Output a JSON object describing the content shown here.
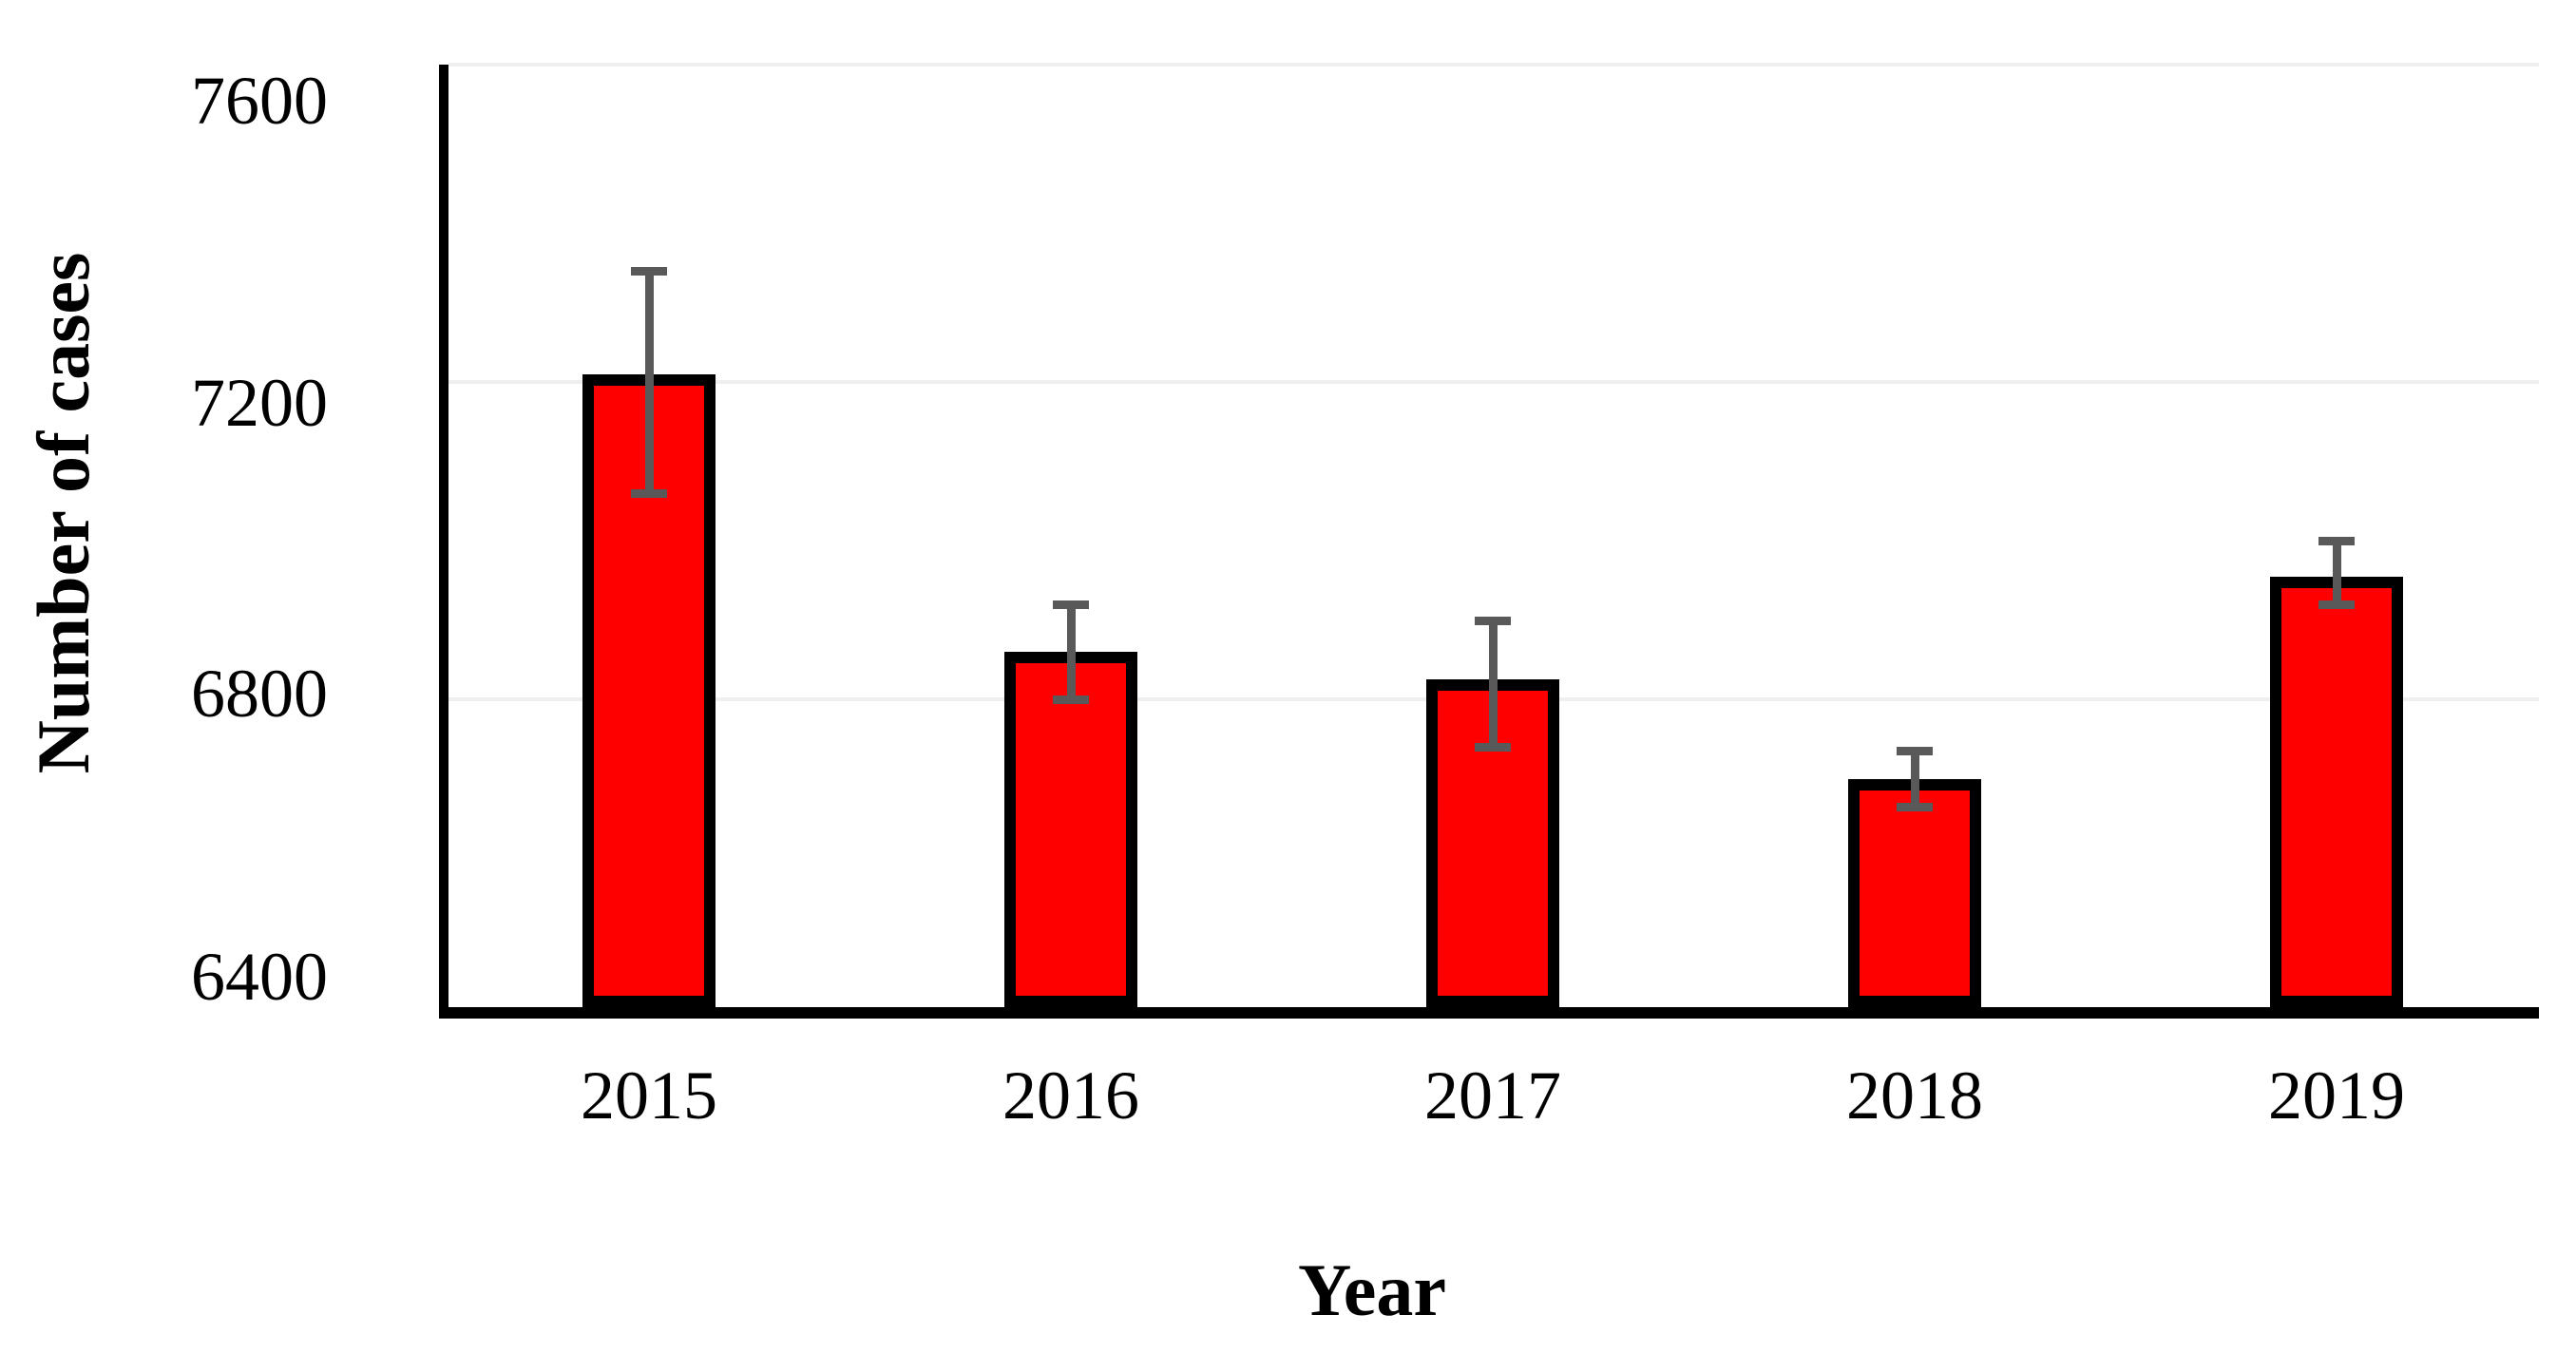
{
  "chart_data": {
    "type": "bar",
    "title": "",
    "xlabel": "Year",
    "ylabel": "Number of cases",
    "categories": [
      "2015",
      "2016",
      "2017",
      "2018",
      "2019"
    ],
    "values": [
      7210,
      6860,
      6825,
      6700,
      6955
    ],
    "error_low": [
      7060,
      6800,
      6740,
      6665,
      6920
    ],
    "error_high": [
      7340,
      6920,
      6900,
      6735,
      7000
    ],
    "y_ticks": [
      "6400",
      "6800",
      "7200",
      "7600"
    ],
    "ylim": [
      6400,
      7600
    ],
    "grid": true,
    "legend": "none",
    "colors": {
      "bar_fill": "#FF0000",
      "bar_border": "#000000",
      "error_bar": "#595959",
      "gridline": "#EFEFEF",
      "axis": "#000000",
      "text": "#000000",
      "background": "#FFFFFF"
    }
  }
}
